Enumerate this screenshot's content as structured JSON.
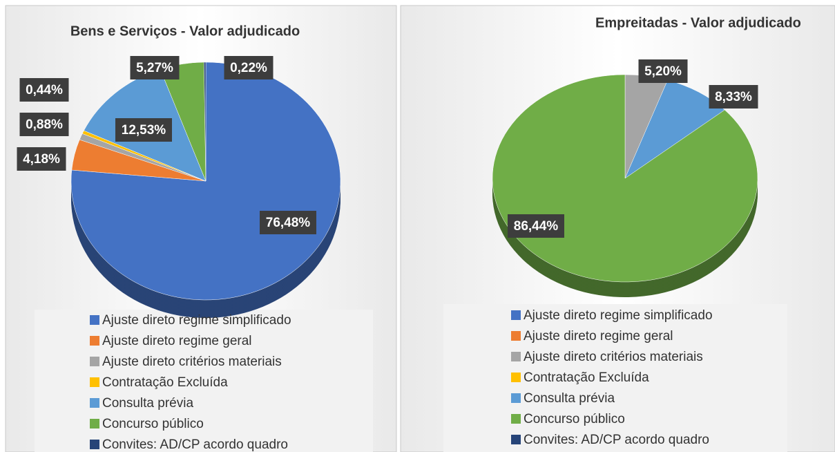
{
  "chart_data": [
    {
      "type": "pie",
      "title": "Bens e Serviços - Valor adjudicado",
      "categories": [
        "Ajuste direto regime simplificado",
        "Ajuste direto regime geral",
        "Ajuste direto critérios materiais",
        "Contratação Excluída",
        "Consulta prévia",
        "Concurso público",
        "Convites: AD/CP acordo quadro"
      ],
      "values": [
        76.48,
        4.18,
        0.88,
        0.44,
        12.53,
        5.27,
        0.22
      ],
      "value_labels": [
        "76,48%",
        "4,18%",
        "0,88%",
        "0,44%",
        "12,53%",
        "5,27%",
        "0,22%"
      ],
      "colors": [
        "#4472c4",
        "#ed7d31",
        "#a5a5a5",
        "#ffc000",
        "#5b9bd5",
        "#70ad47",
        "#264478"
      ]
    },
    {
      "type": "pie",
      "title": "Empreitadas - Valor adjudicado",
      "categories": [
        "Ajuste direto regime simplificado",
        "Ajuste direto regime geral",
        "Ajuste direto critérios materiais",
        "Contratação Excluída",
        "Consulta prévia",
        "Concurso público",
        "Convites: AD/CP acordo quadro"
      ],
      "values": [
        0,
        0,
        5.2,
        0,
        8.33,
        86.44,
        0
      ],
      "value_labels": [
        null,
        null,
        "5,20%",
        null,
        "8,33%",
        "86,44%",
        null
      ],
      "colors": [
        "#4472c4",
        "#ed7d31",
        "#a5a5a5",
        "#ffc000",
        "#5b9bd5",
        "#70ad47",
        "#264478"
      ]
    }
  ]
}
